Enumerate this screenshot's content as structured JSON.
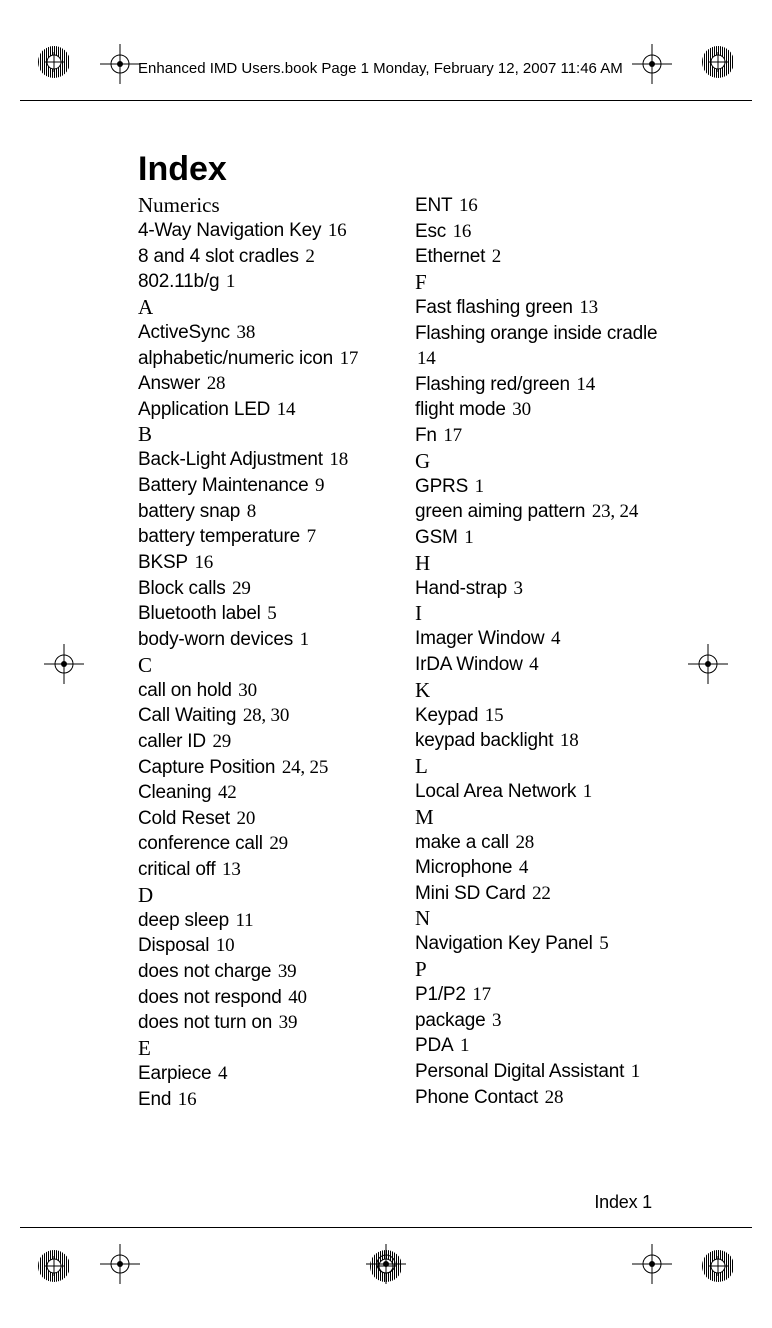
{
  "header": "Enhanced IMD Users.book  Page 1  Monday, February 12, 2007  11:46 AM",
  "title": "Index",
  "footer": "Index 1",
  "left": [
    {
      "type": "letter",
      "text": "Numerics"
    },
    {
      "type": "entry",
      "term": "4-Way Navigation Key",
      "pages": "16"
    },
    {
      "type": "entry",
      "term": "8 and 4 slot cradles",
      "pages": "2"
    },
    {
      "type": "entry",
      "term": "802.11b/g",
      "pages": "1"
    },
    {
      "type": "letter",
      "text": "A"
    },
    {
      "type": "entry",
      "term": "ActiveSync",
      "pages": "38"
    },
    {
      "type": "entry",
      "term": "alphabetic/numeric icon",
      "pages": "17"
    },
    {
      "type": "entry",
      "term": "Answer",
      "pages": "28"
    },
    {
      "type": "entry",
      "term": "Application LED",
      "pages": "14"
    },
    {
      "type": "letter",
      "text": "B"
    },
    {
      "type": "entry",
      "term": "Back-Light Adjustment",
      "pages": "18"
    },
    {
      "type": "entry",
      "term": "Battery Maintenance",
      "pages": "9"
    },
    {
      "type": "entry",
      "term": "battery snap",
      "pages": "8"
    },
    {
      "type": "entry",
      "term": "battery temperature",
      "pages": "7"
    },
    {
      "type": "entry",
      "term": "BKSP",
      "pages": "16"
    },
    {
      "type": "entry",
      "term": "Block calls",
      "pages": "29"
    },
    {
      "type": "entry",
      "term": "Bluetooth label",
      "pages": "5"
    },
    {
      "type": "entry",
      "term": "body-worn devices",
      "pages": "1"
    },
    {
      "type": "letter",
      "text": "C"
    },
    {
      "type": "entry",
      "term": "call on hold",
      "pages": "30"
    },
    {
      "type": "entry",
      "term": "Call Waiting",
      "pages": "28, 30"
    },
    {
      "type": "entry",
      "term": "caller ID",
      "pages": "29"
    },
    {
      "type": "entry",
      "term": "Capture Position",
      "pages": "24, 25"
    },
    {
      "type": "entry",
      "term": "Cleaning",
      "pages": "42"
    },
    {
      "type": "entry",
      "term": "Cold Reset",
      "pages": "20"
    },
    {
      "type": "entry",
      "term": "conference call",
      "pages": "29"
    },
    {
      "type": "entry",
      "term": "critical off",
      "pages": "13"
    },
    {
      "type": "letter",
      "text": "D"
    },
    {
      "type": "entry",
      "term": "deep sleep",
      "pages": "11"
    },
    {
      "type": "entry",
      "term": "Disposal",
      "pages": "10"
    },
    {
      "type": "entry",
      "term": "does not charge",
      "pages": "39"
    },
    {
      "type": "entry",
      "term": "does not respond",
      "pages": "40"
    },
    {
      "type": "entry",
      "term": "does not turn on",
      "pages": "39"
    },
    {
      "type": "letter",
      "text": "E"
    },
    {
      "type": "entry",
      "term": "Earpiece",
      "pages": "4"
    },
    {
      "type": "entry",
      "term": "End",
      "pages": "16"
    }
  ],
  "right": [
    {
      "type": "entry",
      "term": "ENT",
      "pages": "16"
    },
    {
      "type": "entry",
      "term": "Esc",
      "pages": "16"
    },
    {
      "type": "entry",
      "term": "Ethernet",
      "pages": "2"
    },
    {
      "type": "letter",
      "text": "F"
    },
    {
      "type": "entry",
      "term": "Fast flashing green",
      "pages": "13"
    },
    {
      "type": "entry",
      "term": "Flashing orange inside cradle",
      "pages": ""
    },
    {
      "type": "entry",
      "term": "",
      "pages": "14"
    },
    {
      "type": "entry",
      "term": "Flashing red/green",
      "pages": "14"
    },
    {
      "type": "entry",
      "term": "flight mode",
      "pages": "30"
    },
    {
      "type": "entry",
      "term": "Fn",
      "pages": "17"
    },
    {
      "type": "letter",
      "text": "G"
    },
    {
      "type": "entry",
      "term": "GPRS",
      "pages": "1"
    },
    {
      "type": "entry",
      "term": "green aiming pattern",
      "pages": "23, 24"
    },
    {
      "type": "entry",
      "term": "GSM",
      "pages": "1"
    },
    {
      "type": "letter",
      "text": "H"
    },
    {
      "type": "entry",
      "term": "Hand-strap",
      "pages": "3"
    },
    {
      "type": "letter",
      "text": "I"
    },
    {
      "type": "entry",
      "term": "Imager Window",
      "pages": "4"
    },
    {
      "type": "entry",
      "term": "IrDA Window",
      "pages": "4"
    },
    {
      "type": "letter",
      "text": "K"
    },
    {
      "type": "entry",
      "term": "Keypad",
      "pages": "15"
    },
    {
      "type": "entry",
      "term": "keypad backlight",
      "pages": "18"
    },
    {
      "type": "letter",
      "text": "L"
    },
    {
      "type": "entry",
      "term": "Local Area Network",
      "pages": "1"
    },
    {
      "type": "letter",
      "text": "M"
    },
    {
      "type": "entry",
      "term": "make a call",
      "pages": "28"
    },
    {
      "type": "entry",
      "term": "Microphone",
      "pages": "4"
    },
    {
      "type": "entry",
      "term": "Mini SD Card",
      "pages": "22"
    },
    {
      "type": "letter",
      "text": "N"
    },
    {
      "type": "entry",
      "term": "Navigation Key Panel",
      "pages": "5"
    },
    {
      "type": "letter",
      "text": "P"
    },
    {
      "type": "entry",
      "term": "P1/P2",
      "pages": "17"
    },
    {
      "type": "entry",
      "term": "package",
      "pages": "3"
    },
    {
      "type": "entry",
      "term": "PDA",
      "pages": "1"
    },
    {
      "type": "entry",
      "term": "Personal Digital Assistant",
      "pages": "1"
    },
    {
      "type": "entry",
      "term": "Phone Contact",
      "pages": "28"
    }
  ]
}
